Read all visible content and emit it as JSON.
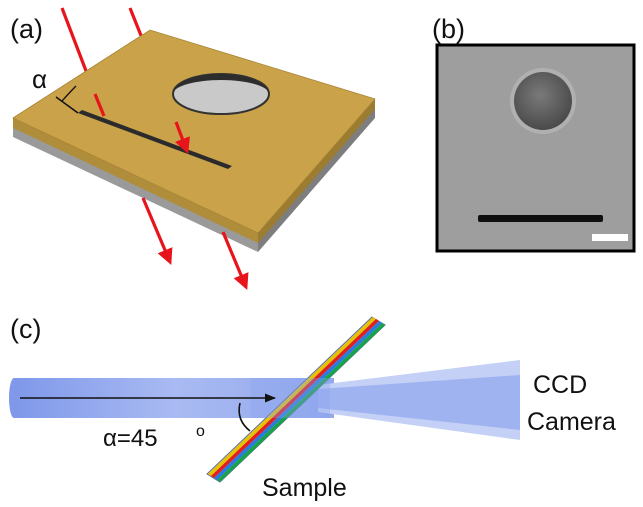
{
  "panels": {
    "a": {
      "label": "(a)",
      "angle_symbol": "α"
    },
    "b": {
      "label": "(b)"
    },
    "c": {
      "label": "(c)",
      "angle_text": "α=45",
      "angle_unit": "o",
      "sample_label": "Sample",
      "detector_line1": "CCD",
      "detector_line2": "Camera"
    }
  },
  "colors": {
    "gold_top": "#c9a24a",
    "gold_side": "#a88535",
    "substrate": "#9a9a9a",
    "laser": "#e8141c",
    "sem_background": "#9c9c9c",
    "beam": "#8aa2ee",
    "sample_stripes": [
      "#e6c200",
      "#e02020",
      "#2a7be0",
      "#16a34a"
    ]
  }
}
